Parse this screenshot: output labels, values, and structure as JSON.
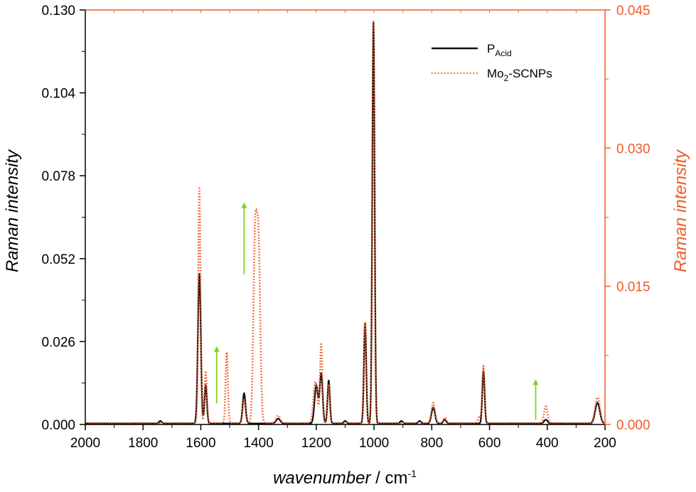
{
  "chart_data": {
    "type": "line",
    "x_axis": {
      "label_italic": "wavenumber",
      "label_unit": " / cm",
      "label_sup": "-1",
      "range": [
        2000,
        200
      ],
      "ticks": [
        "2000",
        "1800",
        "1600",
        "1400",
        "1200",
        "1000",
        "800",
        "600",
        "400",
        "200"
      ]
    },
    "y_left": {
      "label": "Raman intensity",
      "range": [
        0,
        0.13
      ],
      "ticks": [
        "0.000",
        "0.026",
        "0.052",
        "0.078",
        "0.104",
        "0.130"
      ],
      "color": "#000000"
    },
    "y_right": {
      "label": "Raman intensity",
      "range": [
        0,
        0.045
      ],
      "ticks": [
        "0.000",
        "0.015",
        "0.030",
        "0.045"
      ],
      "color": "#f05a28"
    },
    "legend": {
      "placement": "top-right"
    },
    "series": [
      {
        "name_main": "P",
        "name_sub": "Acid",
        "axis": "left",
        "color": "#111111",
        "style": "solid",
        "baseline": 0.0003,
        "peaks": [
          {
            "x": 1740,
            "y": 0.0008,
            "w": 5
          },
          {
            "x": 1605,
            "y": 0.047,
            "w": 5
          },
          {
            "x": 1583,
            "y": 0.012,
            "w": 4
          },
          {
            "x": 1450,
            "y": 0.0095,
            "w": 5
          },
          {
            "x": 1332,
            "y": 0.0015,
            "w": 7
          },
          {
            "x": 1200,
            "y": 0.012,
            "w": 6
          },
          {
            "x": 1183,
            "y": 0.0155,
            "w": 5
          },
          {
            "x": 1157,
            "y": 0.0135,
            "w": 4
          },
          {
            "x": 1100,
            "y": 0.0008,
            "w": 5
          },
          {
            "x": 1031,
            "y": 0.0315,
            "w": 4
          },
          {
            "x": 1002,
            "y": 0.126,
            "w": 4
          },
          {
            "x": 905,
            "y": 0.0008,
            "w": 5
          },
          {
            "x": 842,
            "y": 0.0008,
            "w": 5
          },
          {
            "x": 795,
            "y": 0.005,
            "w": 6
          },
          {
            "x": 755,
            "y": 0.0012,
            "w": 5
          },
          {
            "x": 621,
            "y": 0.0165,
            "w": 4
          },
          {
            "x": 405,
            "y": 0.0012,
            "w": 6
          },
          {
            "x": 226,
            "y": 0.0065,
            "w": 8
          }
        ]
      },
      {
        "name_main": "Mo",
        "name_sub": "2",
        "name_tail": "-SCNPs",
        "axis": "right",
        "color": "#f05a28",
        "style": "dotted",
        "baseline": 0.00015,
        "peaks": [
          {
            "x": 1605,
            "y": 0.0255,
            "w": 4
          },
          {
            "x": 1583,
            "y": 0.0055,
            "w": 4
          },
          {
            "x": 1510,
            "y": 0.0077,
            "w": 4
          },
          {
            "x": 1450,
            "y": 0.0025,
            "w": 5
          },
          {
            "x": 1412,
            "y": 0.0195,
            "w": 6
          },
          {
            "x": 1400,
            "y": 0.0185,
            "w": 6
          },
          {
            "x": 1332,
            "y": 0.0008,
            "w": 7
          },
          {
            "x": 1203,
            "y": 0.0045,
            "w": 7
          },
          {
            "x": 1183,
            "y": 0.0085,
            "w": 4
          },
          {
            "x": 1157,
            "y": 0.0042,
            "w": 4
          },
          {
            "x": 1031,
            "y": 0.011,
            "w": 4
          },
          {
            "x": 1002,
            "y": 0.0435,
            "w": 4
          },
          {
            "x": 795,
            "y": 0.0022,
            "w": 6
          },
          {
            "x": 755,
            "y": 0.0006,
            "w": 5
          },
          {
            "x": 635,
            "y": 0.0008,
            "w": 4
          },
          {
            "x": 621,
            "y": 0.0062,
            "w": 4
          },
          {
            "x": 405,
            "y": 0.0018,
            "w": 6
          },
          {
            "x": 226,
            "y": 0.0028,
            "w": 8
          }
        ]
      }
    ],
    "annotations": {
      "arrows": [
        {
          "x": 1545,
          "y_from": 0.0023,
          "y_to": 0.0085,
          "axis": "right"
        },
        {
          "x": 1450,
          "y_from": 0.0163,
          "y_to": 0.0241,
          "axis": "right"
        },
        {
          "x": 440,
          "y_from": 0.0005,
          "y_to": 0.0049,
          "axis": "right"
        }
      ],
      "arrow_color": "#7ed321"
    }
  }
}
